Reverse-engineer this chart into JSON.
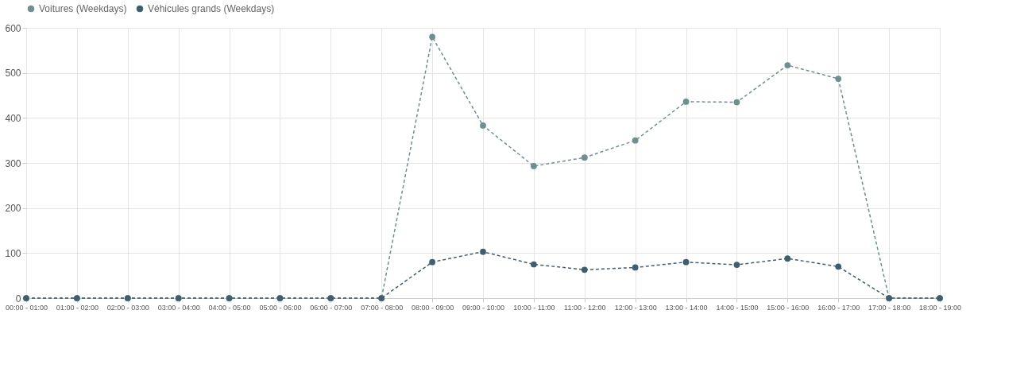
{
  "chart_data": {
    "type": "line",
    "categories": [
      "00:00 - 01:00",
      "01:00 - 02:00",
      "02:00 - 03:00",
      "03:00 - 04:00",
      "04:00 - 05:00",
      "05:00 - 06:00",
      "06:00 - 07:00",
      "07:00 - 08:00",
      "08:00 - 09:00",
      "09:00 - 10:00",
      "10:00 - 11:00",
      "11:00 - 12:00",
      "12:00 - 13:00",
      "13:00 - 14:00",
      "14:00 - 15:00",
      "15:00 - 16:00",
      "16:00 - 17:00",
      "17:00 - 18:00",
      "18:00 - 19:00"
    ],
    "series": [
      {
        "name": "Voitures (Weekdays)",
        "color": "#6e8f8f",
        "values": [
          0,
          0,
          0,
          0,
          0,
          0,
          0,
          0,
          580,
          383,
          293,
          312,
          350,
          436,
          435,
          517,
          487,
          0,
          0
        ]
      },
      {
        "name": "Véhicules grands (Weekdays)",
        "color": "#3f5f6e",
        "values": [
          0,
          0,
          0,
          0,
          0,
          0,
          0,
          0,
          80,
          103,
          75,
          63,
          68,
          80,
          74,
          88,
          70,
          0,
          0
        ]
      }
    ],
    "ylim": [
      0,
      600
    ],
    "yticks": [
      0,
      100,
      200,
      300,
      400,
      500,
      600
    ],
    "grid": true,
    "legend": "top",
    "marker": "circle",
    "line_style": "dashed"
  }
}
